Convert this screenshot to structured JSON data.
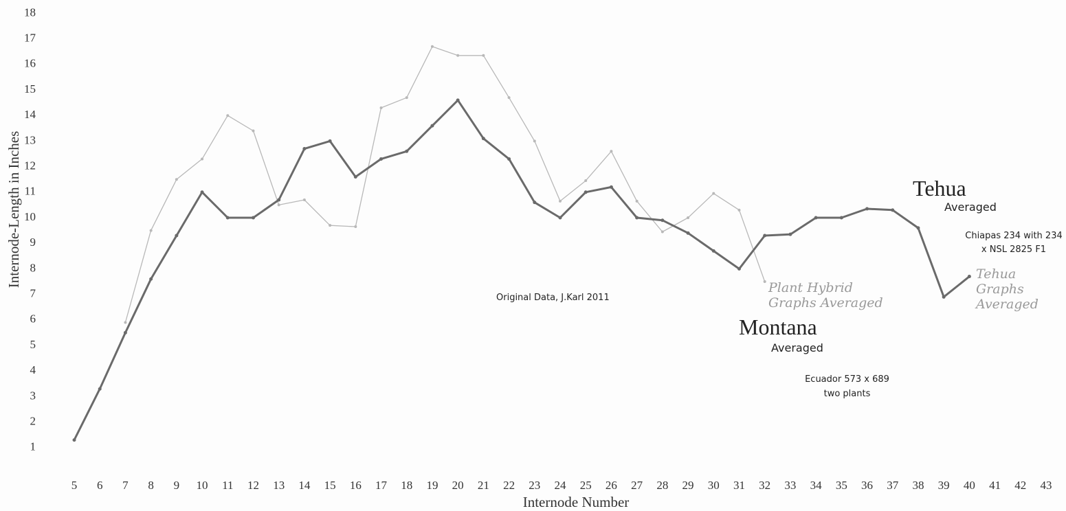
{
  "chart_data": {
    "type": "line",
    "x_label": "Internode Number",
    "y_label": "Internode-Length in Inches",
    "x": [
      5,
      6,
      7,
      8,
      9,
      10,
      11,
      12,
      13,
      14,
      15,
      16,
      17,
      18,
      19,
      20,
      21,
      22,
      23,
      24,
      25,
      26,
      27,
      28,
      29,
      30,
      31,
      32,
      33,
      34,
      35,
      36,
      37,
      38,
      39,
      40
    ],
    "series": [
      {
        "name": "Plant Hybrid Graphs Averaged",
        "color": "#b8b8b8",
        "values": [
          null,
          null,
          5.9,
          9.5,
          11.5,
          12.3,
          14.0,
          13.4,
          10.5,
          10.7,
          9.7,
          9.65,
          14.3,
          14.7,
          16.7,
          16.35,
          16.35,
          14.7,
          13.0,
          10.65,
          11.45,
          12.6,
          10.65,
          9.45,
          10.0,
          10.95,
          10.3,
          7.5,
          null,
          null,
          null,
          null,
          null,
          null,
          null,
          null
        ]
      },
      {
        "name": "Tehua Graphs Averaged",
        "color": "#6a6a6a",
        "values": [
          1.3,
          3.3,
          5.5,
          7.6,
          9.3,
          11.0,
          10.0,
          10.0,
          10.7,
          12.7,
          13.0,
          11.6,
          12.3,
          12.6,
          13.6,
          14.6,
          13.1,
          12.3,
          10.6,
          10.0,
          11.0,
          11.2,
          10.0,
          9.9,
          9.4,
          8.7,
          8.0,
          9.3,
          9.35,
          10.0,
          10.0,
          10.35,
          10.3,
          9.6,
          6.9,
          7.7
        ]
      }
    ],
    "xlim": [
      4,
      43.5
    ],
    "xticks": [
      5,
      6,
      7,
      8,
      9,
      10,
      11,
      12,
      13,
      14,
      15,
      16,
      17,
      18,
      19,
      20,
      21,
      22,
      23,
      24,
      25,
      26,
      27,
      28,
      29,
      30,
      31,
      32,
      33,
      34,
      35,
      36,
      37,
      38,
      39,
      40,
      41,
      42,
      43
    ],
    "ylim": [
      0,
      18
    ],
    "yticks": [
      1,
      2,
      3,
      4,
      5,
      6,
      7,
      8,
      9,
      10,
      11,
      12,
      13,
      14,
      15,
      16,
      17,
      18
    ],
    "grid": false,
    "annotations": [
      "Tehua",
      "Averaged",
      "Chiapas 234 with 234 x NSL 2825 F1",
      "Montana",
      "Averaged",
      "Ecuador 573 x 689 two plants",
      "Original Data, J.Karl 2011"
    ]
  }
}
